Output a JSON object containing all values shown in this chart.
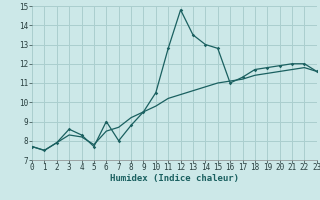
{
  "xlabel": "Humidex (Indice chaleur)",
  "bg_color": "#cce8e8",
  "grid_color": "#aacece",
  "line_color": "#1a6060",
  "line1_x": [
    0,
    1,
    2,
    3,
    4,
    5,
    6,
    7,
    8,
    9,
    10,
    11,
    12,
    13,
    14,
    15,
    16,
    17,
    18,
    19,
    20,
    21,
    22,
    23
  ],
  "line1_y": [
    7.7,
    7.5,
    7.9,
    8.6,
    8.3,
    7.7,
    9.0,
    8.0,
    8.8,
    9.5,
    10.5,
    12.8,
    14.8,
    13.5,
    13.0,
    12.8,
    11.0,
    11.3,
    11.7,
    11.8,
    11.9,
    12.0,
    12.0,
    11.6
  ],
  "line2_x": [
    0,
    1,
    2,
    3,
    4,
    5,
    6,
    7,
    8,
    9,
    10,
    11,
    12,
    13,
    14,
    15,
    16,
    17,
    18,
    19,
    20,
    21,
    22,
    23
  ],
  "line2_y": [
    7.7,
    7.5,
    7.9,
    8.3,
    8.2,
    7.8,
    8.5,
    8.7,
    9.2,
    9.5,
    9.8,
    10.2,
    10.4,
    10.6,
    10.8,
    11.0,
    11.1,
    11.2,
    11.4,
    11.5,
    11.6,
    11.7,
    11.8,
    11.6
  ],
  "xlim": [
    0,
    23
  ],
  "ylim": [
    7,
    15
  ],
  "xticks": [
    0,
    1,
    2,
    3,
    4,
    5,
    6,
    7,
    8,
    9,
    10,
    11,
    12,
    13,
    14,
    15,
    16,
    17,
    18,
    19,
    20,
    21,
    22,
    23
  ],
  "yticks": [
    7,
    8,
    9,
    10,
    11,
    12,
    13,
    14,
    15
  ],
  "tick_fontsize": 5.5,
  "label_fontsize": 6.5
}
